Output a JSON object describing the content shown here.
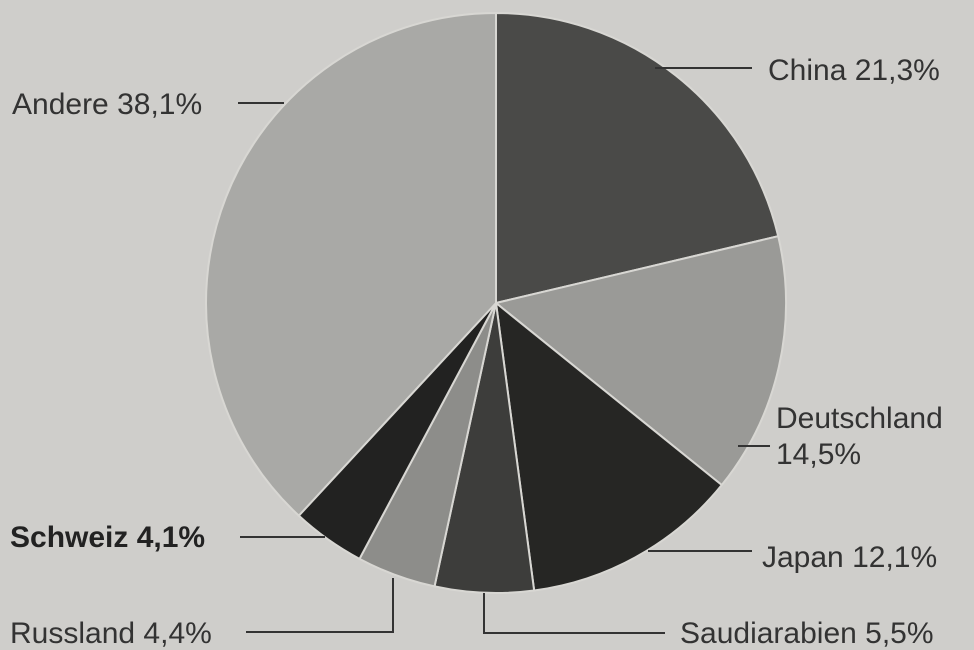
{
  "chart_data": {
    "type": "pie",
    "start_angle_deg": 0,
    "direction": "clockwise",
    "slices": [
      {
        "label": "China",
        "value_text": "21,3%",
        "value": 21.3,
        "color": "#4a4a48",
        "bold": false
      },
      {
        "label": "Deutschland",
        "value_text": "14,5%",
        "value": 14.5,
        "color": "#9a9a97",
        "bold": false
      },
      {
        "label": "Japan",
        "value_text": "12,1%",
        "value": 12.1,
        "color": "#262624",
        "bold": false
      },
      {
        "label": "Saudiarabien",
        "value_text": "5,5%",
        "value": 5.5,
        "color": "#3d3d3b",
        "bold": false
      },
      {
        "label": "Russland",
        "value_text": "4,4%",
        "value": 4.4,
        "color": "#8d8d8a",
        "bold": false
      },
      {
        "label": "Schweiz",
        "value_text": "4,1%",
        "value": 4.1,
        "color": "#222221",
        "bold": true
      },
      {
        "label": "Andere",
        "value_text": "38,1%",
        "value": 38.1,
        "color": "#a9a9a6",
        "bold": false
      }
    ]
  }
}
